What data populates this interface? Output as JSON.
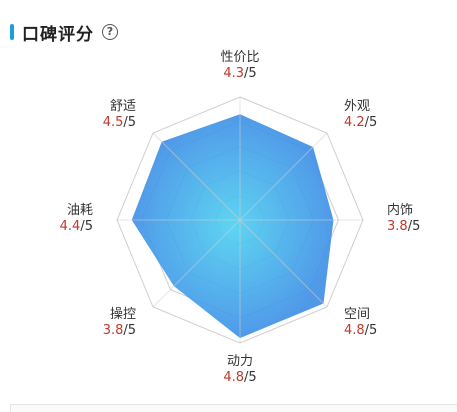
{
  "header": {
    "title": "口碑评分",
    "help_glyph": "?",
    "accent_color": "#1aa0d8"
  },
  "colors": {
    "score_value": "#c0392b",
    "score_suffix": "#333333",
    "fill_outer": "#3d8ee6",
    "fill_inner": "#4dd0f0",
    "grid": "#cfcfcf"
  },
  "chart_data": {
    "type": "radar",
    "max": 5,
    "rings": 5,
    "axes": [
      {
        "name": "性价比",
        "value": 4.3,
        "suffix": "/5"
      },
      {
        "name": "外观",
        "value": 4.2,
        "suffix": "/5"
      },
      {
        "name": "内饰",
        "value": 3.8,
        "suffix": "/5"
      },
      {
        "name": "空间",
        "value": 4.8,
        "suffix": "/5"
      },
      {
        "name": "动力",
        "value": 4.8,
        "suffix": "/5"
      },
      {
        "name": "操控",
        "value": 3.8,
        "suffix": "/5"
      },
      {
        "name": "油耗",
        "value": 4.4,
        "suffix": "/5"
      },
      {
        "name": "舒适",
        "value": 4.5,
        "suffix": "/5"
      }
    ]
  }
}
